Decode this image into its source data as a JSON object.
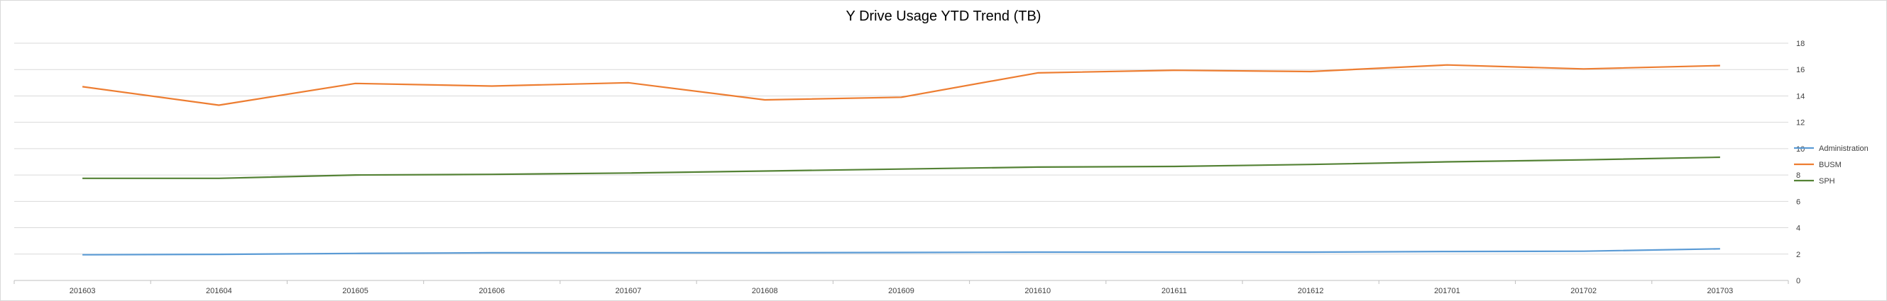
{
  "chart_data": {
    "type": "line",
    "title": "Y Drive Usage YTD Trend (TB)",
    "xlabel": "",
    "ylabel": "",
    "categories": [
      "201603",
      "201604",
      "201605",
      "201606",
      "201607",
      "201608",
      "201609",
      "201610",
      "201611",
      "201612",
      "201701",
      "201702",
      "201703"
    ],
    "ylim": [
      0,
      18
    ],
    "yticks": [
      0,
      2,
      4,
      6,
      8,
      10,
      12,
      14,
      16,
      18
    ],
    "y_axis_side": "right",
    "grid": true,
    "legend_position": "right",
    "series": [
      {
        "name": "Administration",
        "color": "#5b9bd5",
        "values": [
          1.95,
          1.98,
          2.05,
          2.1,
          2.1,
          2.1,
          2.12,
          2.15,
          2.15,
          2.15,
          2.2,
          2.22,
          2.4
        ]
      },
      {
        "name": "BUSM",
        "color": "#ed7d31",
        "values": [
          14.7,
          13.3,
          14.95,
          14.75,
          15.0,
          13.7,
          13.9,
          15.75,
          15.95,
          15.85,
          16.35,
          16.05,
          16.3
        ]
      },
      {
        "name": "SPH",
        "color": "#548235",
        "values": [
          7.75,
          7.75,
          8.0,
          8.05,
          8.15,
          8.3,
          8.45,
          8.6,
          8.65,
          8.8,
          9.0,
          9.15,
          9.35
        ]
      }
    ]
  }
}
